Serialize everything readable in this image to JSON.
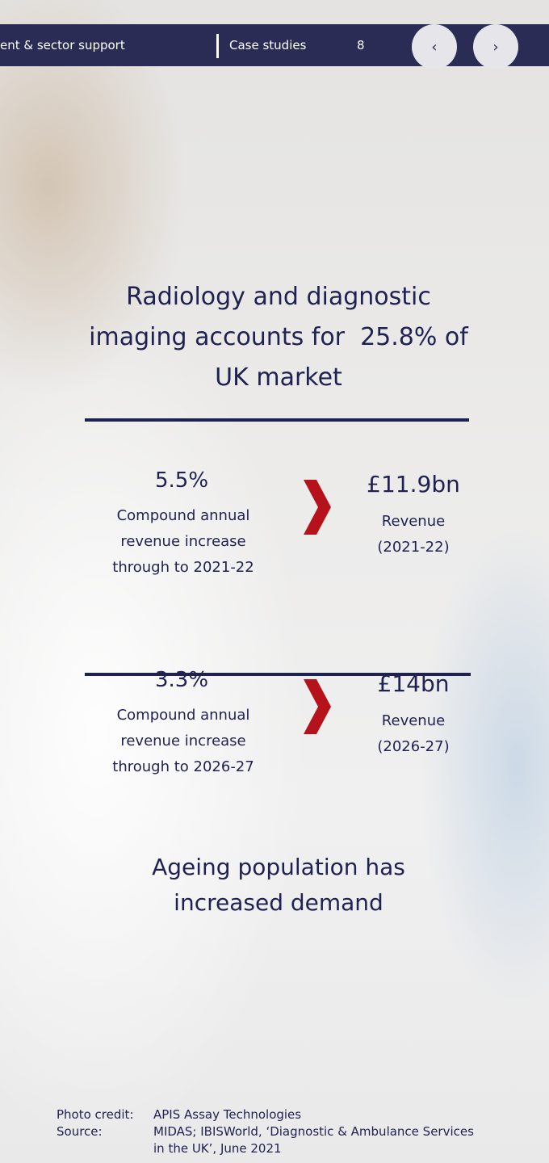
{
  "nav": {
    "section": "ent & sector support",
    "tab": "Case studies",
    "page": "8",
    "prev": "‹",
    "next": "›"
  },
  "headline": "Radiology and diagnostic imaging accounts for  25.8% of UK market",
  "stats": [
    {
      "rate": "5.5%",
      "rate_label": "Compound annual revenue increase through to 2021-22",
      "revenue": "£11.9bn",
      "revenue_label": "Revenue (2021-22)"
    },
    {
      "rate": "3.3%",
      "rate_label": "Compound annual revenue increase through to 2026-27",
      "revenue": "£14bn",
      "revenue_label": "Revenue (2026-27)"
    }
  ],
  "footer_headline": "Ageing population has increased demand",
  "credits": [
    {
      "label": "Photo credit:",
      "text": "APIS Assay Technologies"
    },
    {
      "label": "Source:",
      "text": "MIDAS; IBISWorld, ‘Diagnostic & Ambulance Services in the UK’, June 2021"
    }
  ]
}
